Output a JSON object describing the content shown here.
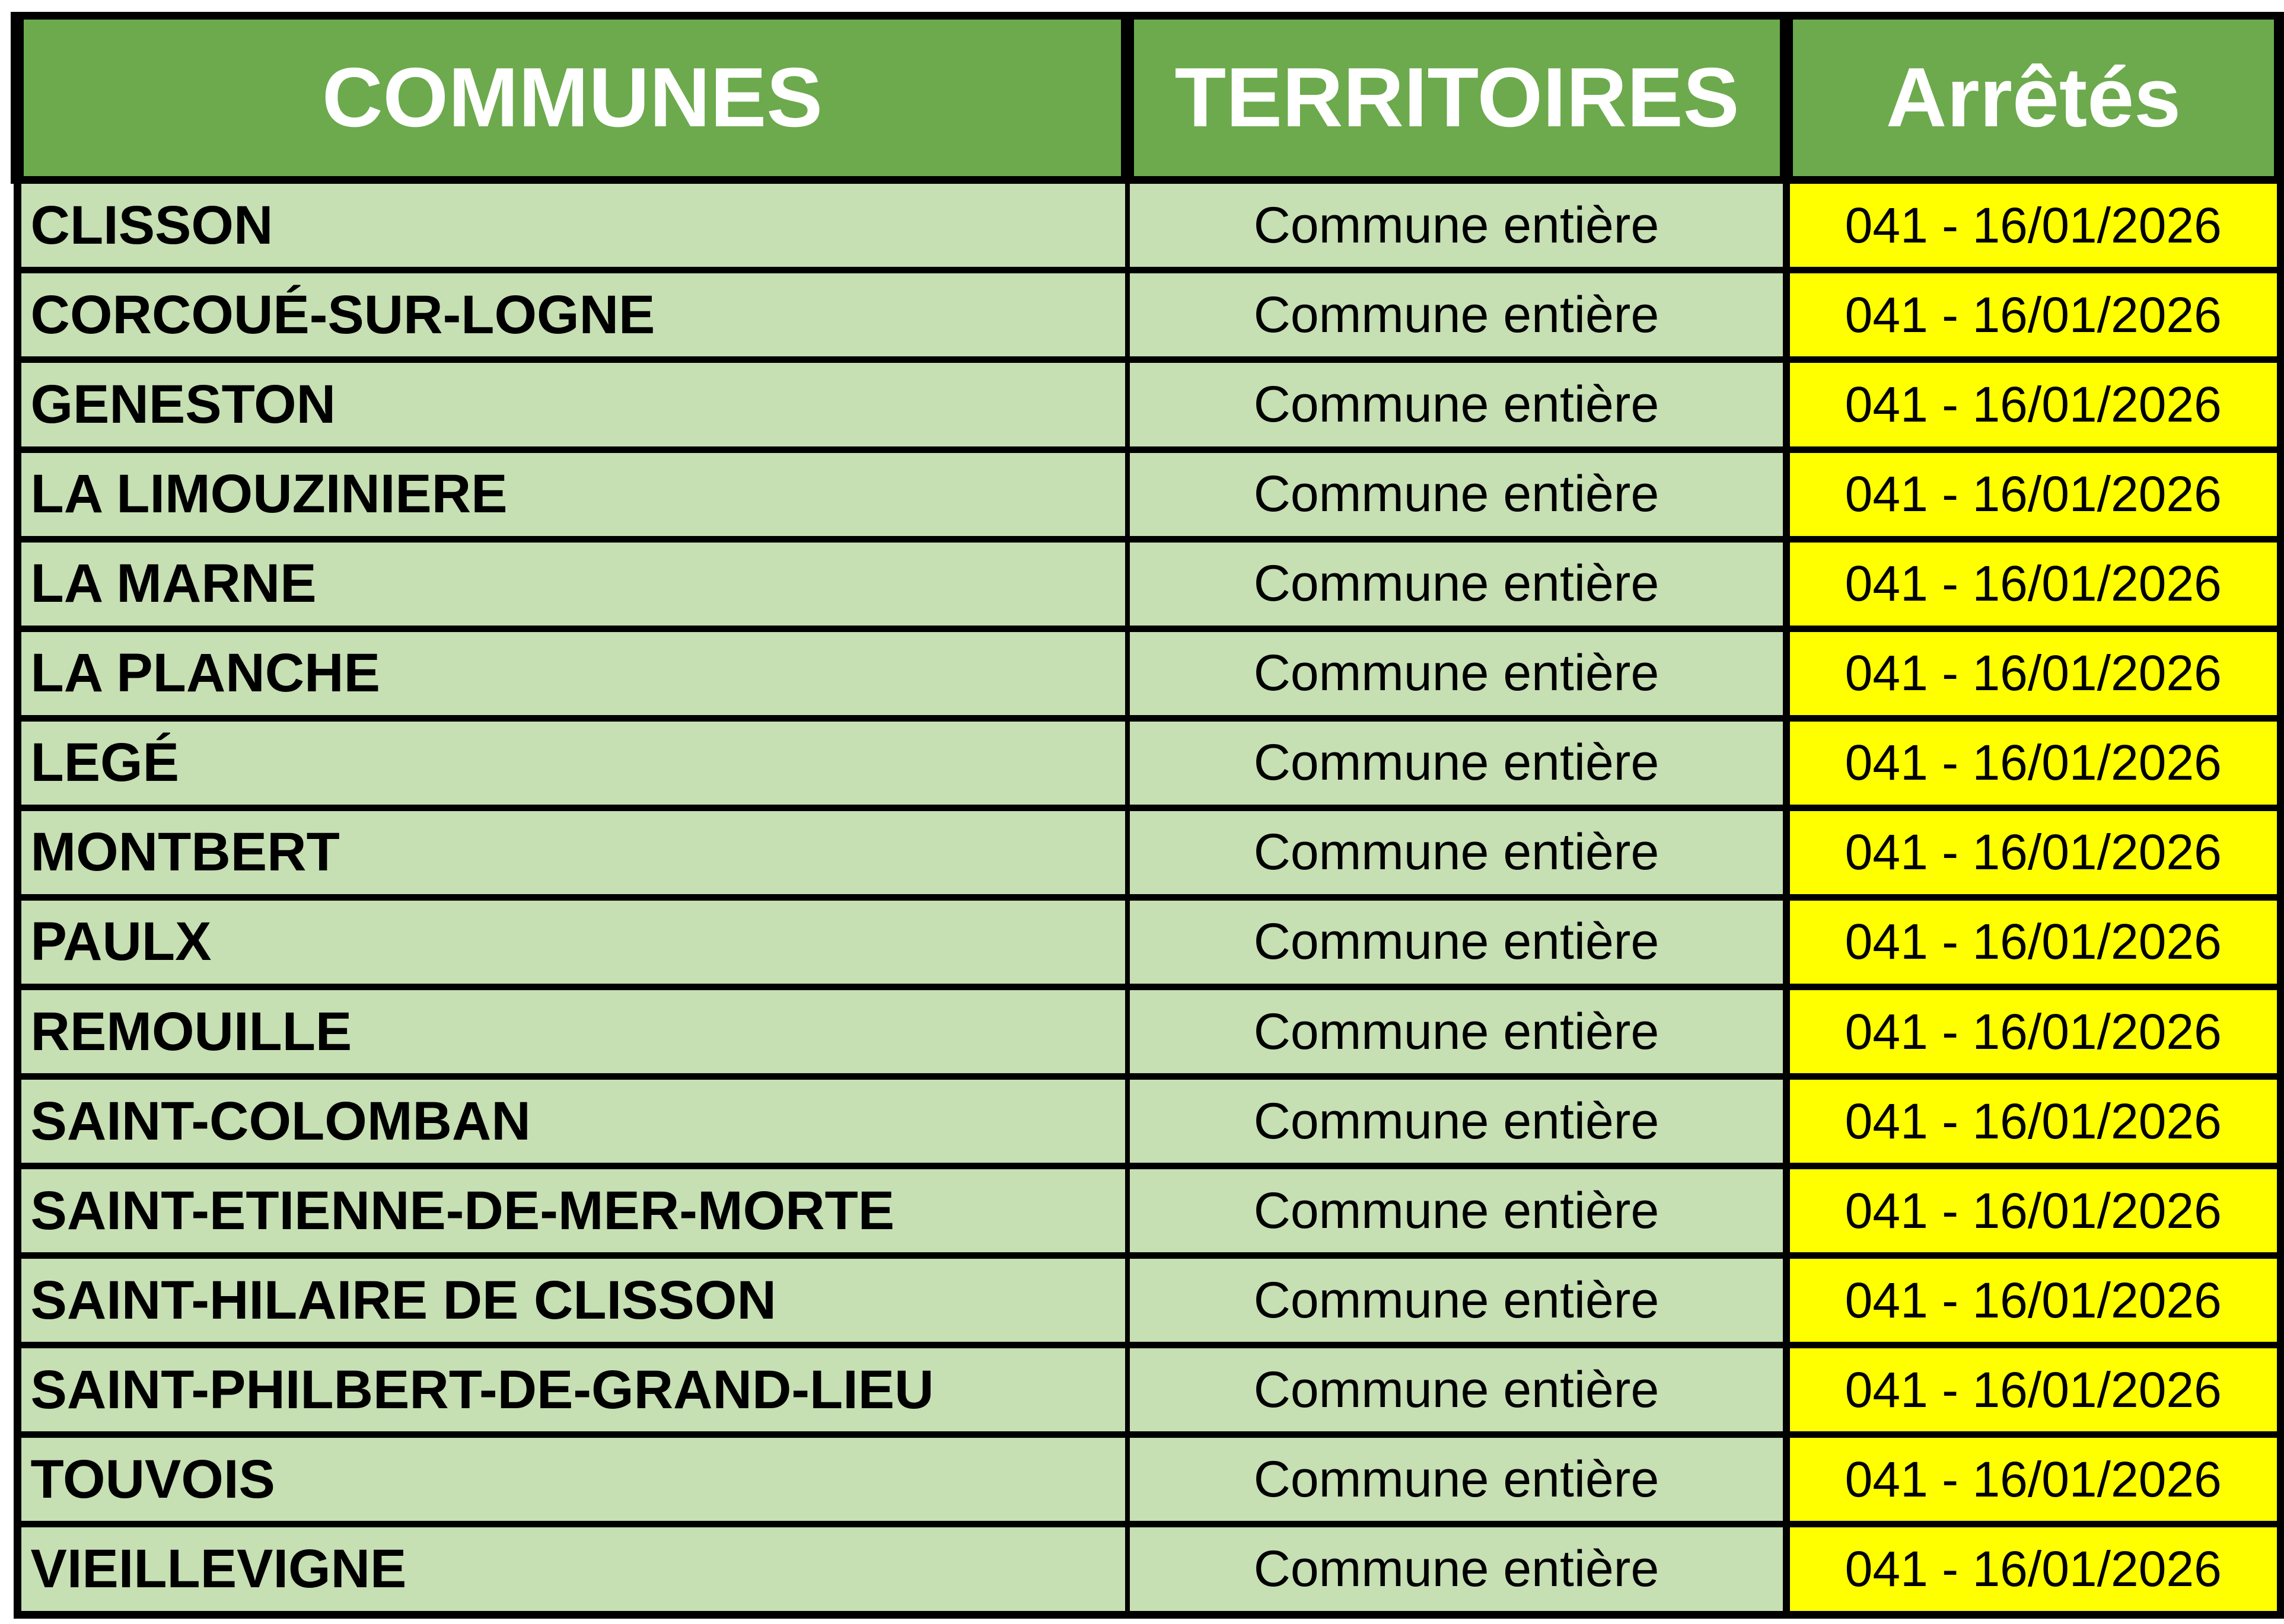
{
  "colors": {
    "header_bg": "#6CAA4D",
    "row_bg": "#C6DFB3",
    "arrete_bg": "#FFFF00",
    "border_color": "#000000",
    "header_text": "#FFFFFF",
    "body_text": "#000000",
    "page_bg": "#FFFFFF"
  },
  "table": {
    "headers": [
      {
        "label": "COMMUNES"
      },
      {
        "label": "TERRITOIRES"
      },
      {
        "label": "Arrêtés"
      }
    ],
    "rows": [
      {
        "commune": "CLISSON",
        "territoire": "Commune entière",
        "arrete": "041 - 16/01/2026"
      },
      {
        "commune": "CORCOUÉ-SUR-LOGNE",
        "territoire": "Commune entière",
        "arrete": "041 - 16/01/2026"
      },
      {
        "commune": "GENESTON",
        "territoire": "Commune entière",
        "arrete": "041 - 16/01/2026"
      },
      {
        "commune": "LA LIMOUZINIERE",
        "territoire": "Commune entière",
        "arrete": "041 - 16/01/2026"
      },
      {
        "commune": "LA MARNE",
        "territoire": "Commune entière",
        "arrete": "041 - 16/01/2026"
      },
      {
        "commune": "LA PLANCHE",
        "territoire": "Commune entière",
        "arrete": "041 - 16/01/2026"
      },
      {
        "commune": "LEGÉ",
        "territoire": "Commune entière",
        "arrete": "041 - 16/01/2026"
      },
      {
        "commune": "MONTBERT",
        "territoire": "Commune entière",
        "arrete": "041 - 16/01/2026"
      },
      {
        "commune": "PAULX",
        "territoire": "Commune entière",
        "arrete": "041 - 16/01/2026"
      },
      {
        "commune": "REMOUILLE",
        "territoire": "Commune entière",
        "arrete": "041 - 16/01/2026"
      },
      {
        "commune": "SAINT-COLOMBAN",
        "territoire": "Commune entière",
        "arrete": "041 - 16/01/2026"
      },
      {
        "commune": "SAINT-ETIENNE-DE-MER-MORTE",
        "territoire": "Commune entière",
        "arrete": "041 - 16/01/2026"
      },
      {
        "commune": "SAINT-HILAIRE DE CLISSON",
        "territoire": "Commune entière",
        "arrete": "041 - 16/01/2026"
      },
      {
        "commune": "SAINT-PHILBERT-DE-GRAND-LIEU",
        "territoire": "Commune entière",
        "arrete": "041 - 16/01/2026"
      },
      {
        "commune": "TOUVOIS",
        "territoire": "Commune entière",
        "arrete": "041 - 16/01/2026"
      },
      {
        "commune": "VIEILLEVIGNE",
        "territoire": "Commune entière",
        "arrete": "041 - 16/01/2026"
      }
    ]
  }
}
